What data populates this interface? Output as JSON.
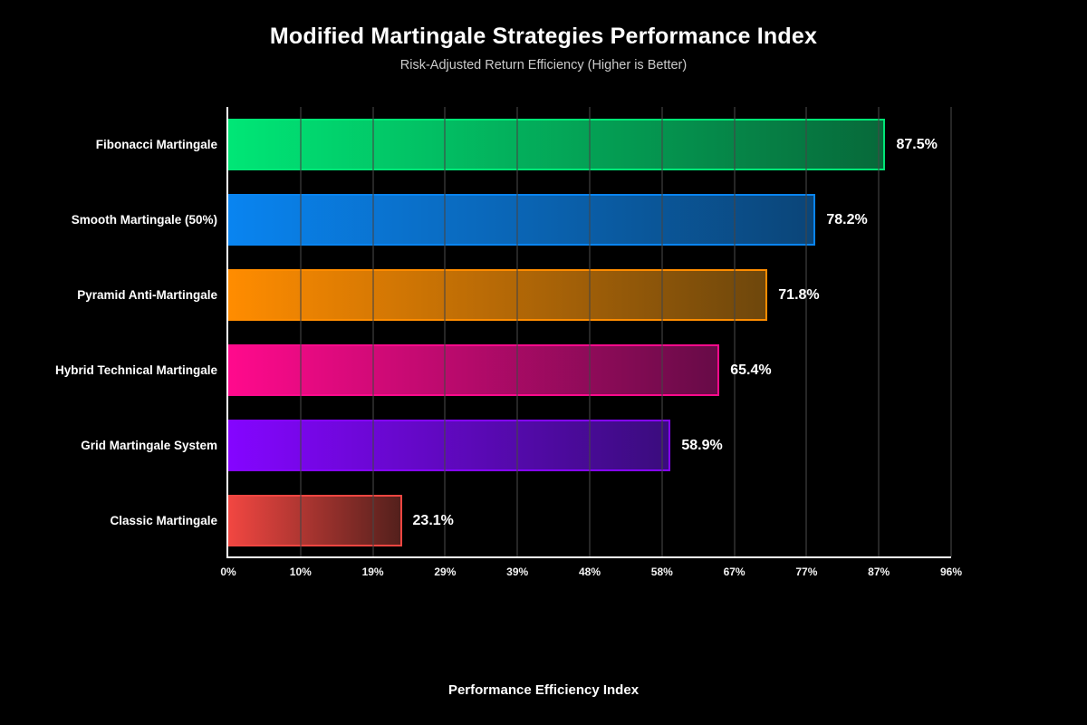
{
  "chart_data": {
    "type": "bar",
    "orientation": "horizontal",
    "title": "Modified Martingale Strategies Performance Index",
    "subtitle": "Risk-Adjusted Return Efficiency (Higher is Better)",
    "xlabel": "Performance Efficiency Index",
    "ylabel": "",
    "categories": [
      "Fibonacci Martingale",
      "Smooth Martingale (50%)",
      "Pyramid Anti-Martingale",
      "Hybrid Technical Martingale",
      "Grid Martingale System",
      "Classic Martingale"
    ],
    "values": [
      87.5,
      78.2,
      71.8,
      65.4,
      58.9,
      23.1
    ],
    "value_labels": [
      "87.5%",
      "78.2%",
      "71.8%",
      "65.4%",
      "58.9%",
      "23.1%"
    ],
    "bar_colors": [
      {
        "start": "#00E676",
        "end": "#07693A",
        "border": "#00E676"
      },
      {
        "start": "#0984F0",
        "end": "#0B4578",
        "border": "#0984F0"
      },
      {
        "start": "#FF8C00",
        "end": "#6E470C",
        "border": "#FF8C00"
      },
      {
        "start": "#FF0A8C",
        "end": "#670B47",
        "border": "#FF0A8C"
      },
      {
        "start": "#8405FF",
        "end": "#3A0C7D",
        "border": "#8405FF"
      },
      {
        "start": "#F04641",
        "end": "#54201C",
        "border": "#F04641"
      }
    ],
    "xlim": [
      0,
      96.25
    ],
    "x_tick_labels": [
      "0%",
      "10%",
      "19%",
      "29%",
      "39%",
      "48%",
      "58%",
      "67%",
      "77%",
      "87%",
      "96%"
    ],
    "grid": true,
    "legend": false,
    "colors": {
      "background": "#000000",
      "title_text": "#ffffff",
      "subtitle_text": "#cbcbcb",
      "axis_spine": "#ffffff",
      "gridline": "#464646",
      "tick_text": "#f2f2f2",
      "value_text": "#ffffff"
    }
  }
}
